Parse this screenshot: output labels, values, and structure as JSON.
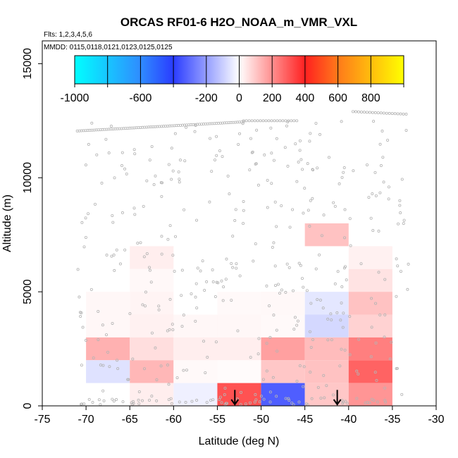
{
  "chart_data": {
    "type": "heatmap",
    "title": "ORCAS RF01-6 H2O_NOAA_m_VMR_VXL",
    "subtitle_flights": "Flts: 1,2,3,4,5,6",
    "subtitle_dates": "MMDD: 0115,0118,0121,0123,0125,0125",
    "xlabel": "Latitude (deg N)",
    "ylabel": "Altitude (m)",
    "xlim": [
      -75,
      -30
    ],
    "ylim": [
      0,
      16000
    ],
    "xticks": [
      -75,
      -70,
      -65,
      -60,
      -55,
      -50,
      -45,
      -40,
      -35,
      -30
    ],
    "xtick_labels": [
      "-75",
      "-70",
      "-65",
      "-60",
      "-55",
      "-50",
      "-45",
      "-40",
      "-35",
      "-30"
    ],
    "yticks": [
      0,
      5000,
      10000,
      15000
    ],
    "ytick_labels": [
      "0",
      "5000",
      "10000",
      "15000"
    ],
    "colorbar": {
      "range": [
        -1000,
        1000
      ],
      "tick_values": [
        -1000,
        -600,
        -200,
        0,
        200,
        400,
        600,
        800
      ],
      "tick_labels": [
        "-1000",
        "-600",
        "-200",
        "0",
        "200",
        "400",
        "600",
        "800"
      ],
      "colors": {
        "neg_1000": "#00ffff",
        "neg_600": "#2f8cff",
        "neg_400": "#2a3cff",
        "zero": "#ffffff",
        "pos_400": "#ff2020",
        "pos_600": "#ff7a1a",
        "pos_1000": "#ffff00"
      }
    },
    "bin_width_deg": 5,
    "bin_height_m": 1000,
    "cells": [
      {
        "lat": -70,
        "alt": 4000,
        "value": 15
      },
      {
        "lat": -70,
        "alt": 3000,
        "value": 15
      },
      {
        "lat": -70,
        "alt": 2000,
        "value": 140
      },
      {
        "lat": -70,
        "alt": 1000,
        "value": -60
      },
      {
        "lat": -65,
        "alt": 6000,
        "value": 30
      },
      {
        "lat": -65,
        "alt": 5000,
        "value": 12
      },
      {
        "lat": -65,
        "alt": 4000,
        "value": 20
      },
      {
        "lat": -65,
        "alt": 3000,
        "value": 25
      },
      {
        "lat": -65,
        "alt": 2000,
        "value": 60
      },
      {
        "lat": -65,
        "alt": 1000,
        "value": 130
      },
      {
        "lat": -65,
        "alt": 0,
        "value": 30
      },
      {
        "lat": -60,
        "alt": 3000,
        "value": 15
      },
      {
        "lat": -60,
        "alt": 2000,
        "value": 30
      },
      {
        "lat": -60,
        "alt": 1000,
        "value": 10
      },
      {
        "lat": -60,
        "alt": 0,
        "value": -30
      },
      {
        "lat": -55,
        "alt": 4000,
        "value": 10
      },
      {
        "lat": -55,
        "alt": 3000,
        "value": 15
      },
      {
        "lat": -55,
        "alt": 2000,
        "value": 30
      },
      {
        "lat": -55,
        "alt": 1000,
        "value": 8
      },
      {
        "lat": -55,
        "alt": 0,
        "value": 310
      },
      {
        "lat": -50,
        "alt": 4000,
        "value": 12
      },
      {
        "lat": -50,
        "alt": 3000,
        "value": 10
      },
      {
        "lat": -50,
        "alt": 2000,
        "value": 170
      },
      {
        "lat": -50,
        "alt": 1000,
        "value": 100
      },
      {
        "lat": -50,
        "alt": 0,
        "value": -330
      },
      {
        "lat": -45,
        "alt": 7000,
        "value": 110
      },
      {
        "lat": -45,
        "alt": 4000,
        "value": -50
      },
      {
        "lat": -45,
        "alt": 3000,
        "value": -80
      },
      {
        "lat": -45,
        "alt": 2000,
        "value": 120
      },
      {
        "lat": -45,
        "alt": 1000,
        "value": 110
      },
      {
        "lat": -45,
        "alt": 0,
        "value": 100
      },
      {
        "lat": -40,
        "alt": 6000,
        "value": 25
      },
      {
        "lat": -40,
        "alt": 5000,
        "value": 50
      },
      {
        "lat": -40,
        "alt": 4000,
        "value": 110
      },
      {
        "lat": -40,
        "alt": 3000,
        "value": 80
      },
      {
        "lat": -40,
        "alt": 2000,
        "value": 230
      },
      {
        "lat": -40,
        "alt": 1000,
        "value": 280
      },
      {
        "lat": -40,
        "alt": 0,
        "value": 190
      }
    ],
    "arrows": [
      {
        "lat": -53,
        "alt_top": 700,
        "alt_bottom": 0
      },
      {
        "lat": -41.3,
        "alt_top": 700,
        "alt_bottom": 0
      }
    ],
    "flight_track_color": "#b4b4b4",
    "grid": false,
    "legend_placement": "top"
  }
}
